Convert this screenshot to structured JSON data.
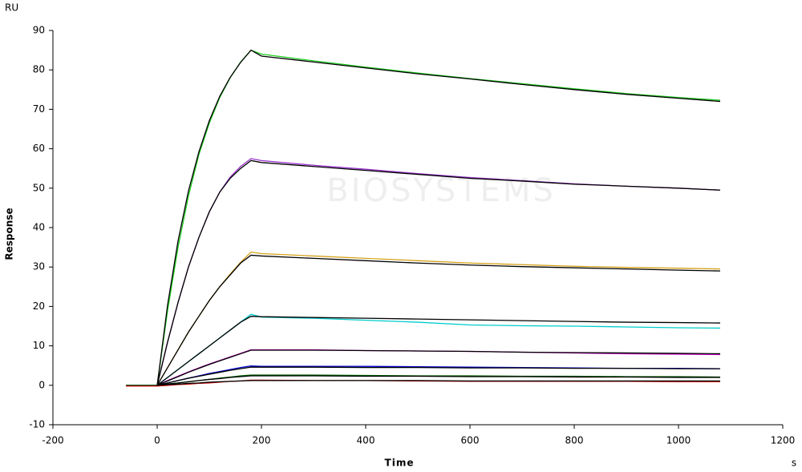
{
  "chart_data": {
    "type": "line",
    "y_unit": "RU",
    "ylabel": "Response",
    "xlabel": "Time",
    "x_unit": "s",
    "watermark": "BIOSYSTEMS",
    "xlim": [
      -200,
      1200
    ],
    "xticks": [
      -200,
      0,
      200,
      400,
      600,
      800,
      1000,
      1200
    ],
    "ylim": [
      -10,
      90
    ],
    "yticks": [
      -10,
      0,
      10,
      20,
      30,
      40,
      50,
      60,
      70,
      80,
      90
    ],
    "grid": false,
    "x": [
      -60,
      0,
      20,
      40,
      60,
      80,
      100,
      120,
      140,
      160,
      180,
      200,
      300,
      400,
      500,
      600,
      700,
      800,
      900,
      1000,
      1080
    ],
    "series": [
      {
        "color": "#22cc22",
        "values": [
          0,
          0,
          19,
          35,
          48,
          58.5,
          66.5,
          73,
          78,
          82,
          85,
          84,
          82.3,
          80.7,
          79.2,
          77.8,
          76.5,
          75.2,
          74,
          73,
          72.3
        ]
      },
      {
        "color": "#9933cc",
        "values": [
          0,
          0,
          11,
          21,
          30,
          37.5,
          44,
          49,
          52.8,
          55.5,
          57.5,
          57,
          55.8,
          54.8,
          53.7,
          52.7,
          51.9,
          51.1,
          50.5,
          50,
          49.5
        ]
      },
      {
        "color": "#d4a017",
        "values": [
          0,
          0,
          4.5,
          9,
          13.5,
          17.5,
          21.5,
          25,
          28.2,
          31.2,
          33.8,
          33.4,
          32.8,
          32.2,
          31.6,
          31,
          30.6,
          30.2,
          29.9,
          29.7,
          29.5
        ]
      },
      {
        "color": "#00cccc",
        "values": [
          0,
          0,
          2,
          4,
          6,
          8,
          10,
          12,
          14,
          16,
          18,
          17.3,
          17,
          16.5,
          16,
          15.3,
          15.1,
          15,
          14.8,
          14.6,
          14.5
        ]
      },
      {
        "color": "#cc00cc",
        "values": [
          0,
          0,
          1.2,
          2.3,
          3.4,
          4.4,
          5.4,
          6.3,
          7.2,
          8.1,
          9,
          9,
          9,
          8.8,
          8.7,
          8.6,
          8.4,
          8.2,
          8,
          7.9,
          7.8
        ]
      },
      {
        "color": "#0000cc",
        "values": [
          0,
          0,
          0.6,
          1.2,
          1.8,
          2.4,
          3,
          3.5,
          4,
          4.5,
          4.9,
          4.8,
          4.8,
          4.8,
          4.7,
          4.6,
          4.5,
          4.4,
          4.3,
          4.3,
          4.2
        ]
      },
      {
        "color": "#006600",
        "values": [
          0,
          0,
          0.3,
          0.6,
          0.9,
          1.2,
          1.5,
          1.8,
          2.1,
          2.4,
          2.6,
          2.6,
          2.6,
          2.5,
          2.4,
          2.4,
          2.3,
          2.3,
          2.2,
          2.2,
          2.1
        ]
      },
      {
        "color": "#cc0000",
        "values": [
          -0.2,
          -0.2,
          0,
          0.2,
          0.3,
          0.5,
          0.6,
          0.8,
          1,
          1.1,
          1.3,
          1.3,
          1.2,
          1.2,
          1.1,
          1,
          1,
          1,
          1,
          0.9,
          0.9
        ]
      },
      {
        "color": "#000000",
        "values": [
          null,
          0,
          20.4,
          36.6,
          49.3,
          59.2,
          67.1,
          73.3,
          78.1,
          81.9,
          85,
          83.5,
          82,
          80.5,
          79,
          77.7,
          76.3,
          75,
          73.8,
          72.8,
          72
        ]
      },
      {
        "color": "#000000",
        "values": [
          null,
          0,
          11,
          21,
          30,
          37.5,
          44,
          49,
          52.5,
          55,
          57,
          56.5,
          55.5,
          54.5,
          53.5,
          52.5,
          51.8,
          51,
          50.5,
          50,
          49.5
        ]
      },
      {
        "color": "#000000",
        "values": [
          null,
          0,
          4.5,
          9,
          13.5,
          17.5,
          21.5,
          25,
          28,
          31,
          33,
          32.8,
          32.2,
          31.6,
          31,
          30.5,
          30.1,
          29.8,
          29.5,
          29.2,
          29
        ]
      },
      {
        "color": "#000000",
        "values": [
          null,
          0,
          2,
          4,
          6,
          8,
          10,
          12,
          14,
          16,
          17.5,
          17.4,
          17.2,
          17,
          16.8,
          16.6,
          16.4,
          16.2,
          16,
          15.9,
          15.8
        ]
      },
      {
        "color": "#000000",
        "values": [
          null,
          0,
          1.1,
          2.2,
          3.3,
          4.3,
          5.3,
          6.2,
          7.1,
          8,
          8.9,
          8.9,
          8.9,
          8.8,
          8.7,
          8.6,
          8.4,
          8.3,
          8.2,
          8.1,
          8
        ]
      },
      {
        "color": "#000000",
        "values": [
          null,
          0,
          0.6,
          1.2,
          1.8,
          2.3,
          2.8,
          3.3,
          3.8,
          4.2,
          4.6,
          4.6,
          4.6,
          4.5,
          4.5,
          4.4,
          4.4,
          4.3,
          4.3,
          4.2,
          4.2
        ]
      },
      {
        "color": "#000000",
        "values": [
          null,
          0,
          0.3,
          0.6,
          0.9,
          1.2,
          1.5,
          1.7,
          2,
          2.2,
          2.4,
          2.4,
          2.4,
          2.3,
          2.3,
          2.2,
          2.2,
          2.1,
          2.1,
          2,
          2
        ]
      },
      {
        "color": "#000000",
        "values": [
          null,
          0,
          0.2,
          0.3,
          0.5,
          0.6,
          0.8,
          0.9,
          1,
          1.1,
          1.2,
          1.2,
          1.2,
          1.2,
          1.2,
          1.1,
          1.1,
          1.1,
          1.1,
          1.1,
          1.1
        ]
      }
    ]
  }
}
